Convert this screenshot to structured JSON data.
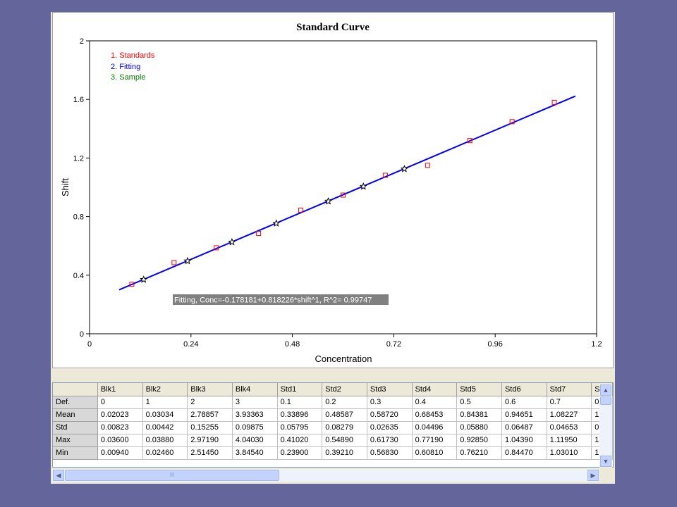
{
  "colors": {
    "background": "#64659a",
    "standards": "#ff0000",
    "fitting": "#0000ff",
    "sample": "#000000",
    "sample_legend": "#008000"
  },
  "chart_data": {
    "type": "scatter",
    "title": "Standard Curve",
    "xlabel": "Concentration",
    "ylabel": "Shift",
    "xlim": [
      0,
      1.2
    ],
    "ylim": [
      0,
      2
    ],
    "xticks": [
      "0",
      "0.24",
      "0.48",
      "0.72",
      "0.96",
      "1.2"
    ],
    "yticks": [
      "0",
      "0.4",
      "0.8",
      "1.2",
      "1.6",
      "2"
    ],
    "legend": [
      "1. Standards",
      "2. Fitting",
      "3. Sample"
    ],
    "legend_position": "top-left",
    "annotation": "Fitting, Conc=-0.178181+0.818226*shift^1, R^2=  0.99747",
    "series": [
      {
        "name": "1. Standards",
        "style": "open-square",
        "points": [
          [
            0.1,
            0.338
          ],
          [
            0.2,
            0.486
          ],
          [
            0.3,
            0.587
          ],
          [
            0.4,
            0.685
          ],
          [
            0.5,
            0.844
          ],
          [
            0.6,
            0.947
          ],
          [
            0.7,
            1.082
          ],
          [
            0.8,
            1.15
          ],
          [
            0.9,
            1.319
          ],
          [
            1.0,
            1.448
          ],
          [
            1.1,
            1.58
          ]
        ]
      },
      {
        "name": "2. Fitting",
        "style": "line",
        "points": [
          [
            0.07,
            0.3
          ],
          [
            1.15,
            1.623
          ]
        ]
      },
      {
        "name": "3. Sample",
        "style": "star",
        "points": [
          [
            0.128,
            0.37
          ],
          [
            0.232,
            0.497
          ],
          [
            0.337,
            0.626
          ],
          [
            0.442,
            0.754
          ],
          [
            0.565,
            0.905
          ],
          [
            0.648,
            1.006
          ],
          [
            0.745,
            1.125
          ]
        ]
      }
    ]
  },
  "table": {
    "columns": [
      "",
      "Blk1",
      "Blk2",
      "Blk3",
      "Blk4",
      "Std1",
      "Std2",
      "Std3",
      "Std4",
      "Std5",
      "Std6",
      "Std7",
      "S"
    ],
    "rows": [
      {
        "label": "Def.",
        "cells": [
          "0",
          "1",
          "2",
          "3",
          "0.1",
          "0.2",
          "0.3",
          "0.4",
          "0.5",
          "0.6",
          "0.7",
          "0"
        ]
      },
      {
        "label": "Mean",
        "cells": [
          "0.02023",
          "0.03034",
          "2.78857",
          "3.93363",
          "0.33896",
          "0.48587",
          "0.58720",
          "0.68453",
          "0.84381",
          "0.94651",
          "1.08227",
          "1"
        ]
      },
      {
        "label": "Std",
        "cells": [
          "0.00823",
          "0.00442",
          "0.15255",
          "0.09875",
          "0.05795",
          "0.08279",
          "0.02635",
          "0.04496",
          "0.05880",
          "0.06487",
          "0.04653",
          "0"
        ]
      },
      {
        "label": "Max",
        "cells": [
          "0.03600",
          "0.03880",
          "2.97190",
          "4.04030",
          "0.41020",
          "0.54890",
          "0.61730",
          "0.77190",
          "0.92850",
          "1.04390",
          "1.11950",
          "1"
        ]
      },
      {
        "label": "Min",
        "cells": [
          "0.00940",
          "0.02460",
          "2.51450",
          "3.84540",
          "0.23900",
          "0.39210",
          "0.56830",
          "0.60810",
          "0.76210",
          "0.84470",
          "1.03010",
          "1"
        ]
      }
    ]
  },
  "scroll": {
    "thumb_grip": "III"
  }
}
